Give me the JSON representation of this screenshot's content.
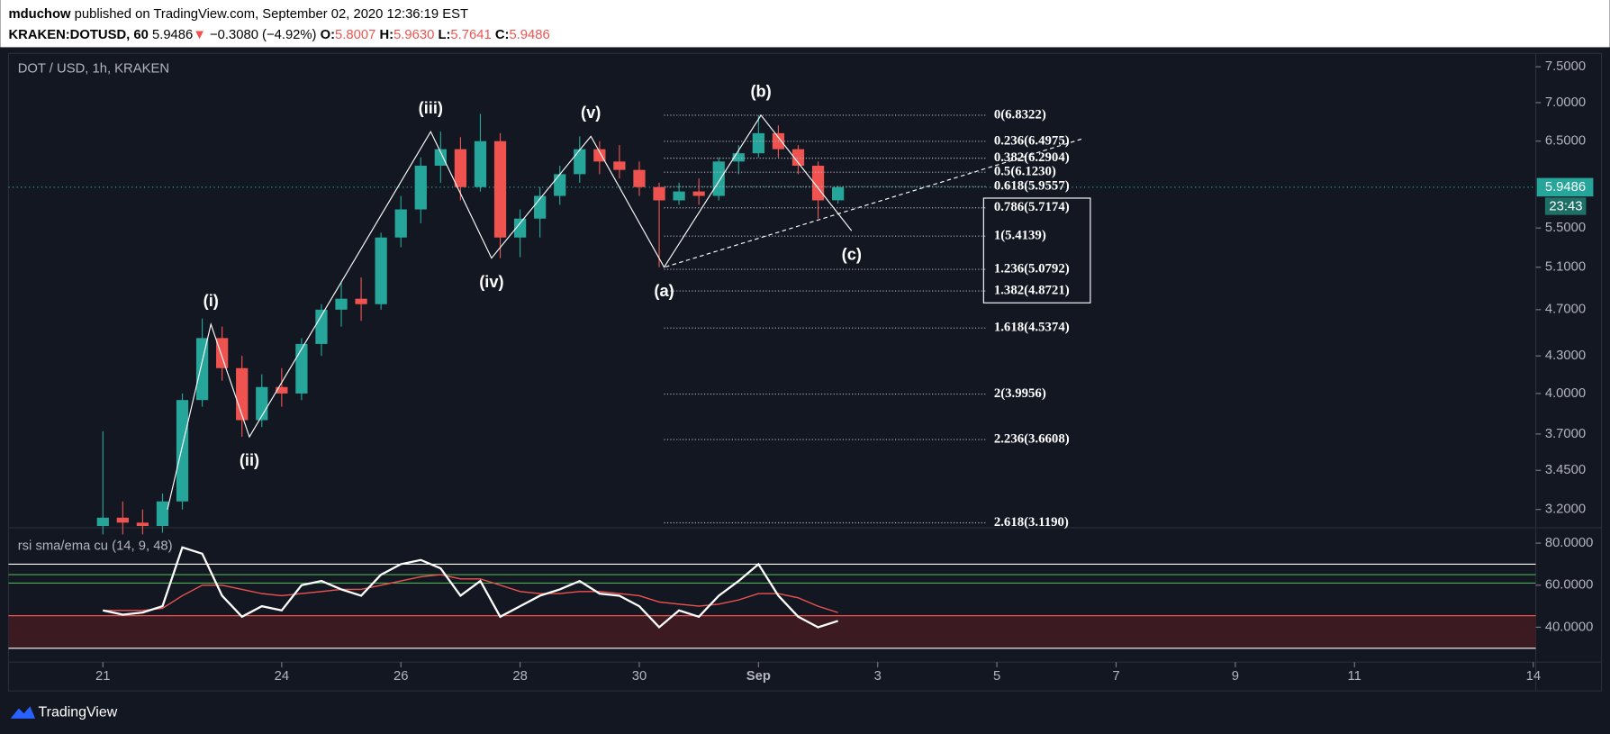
{
  "header": {
    "author": "mduchow",
    "published": "published on TradingView.com, September 02, 2020 12:36:19 EST",
    "symbol": "KRAKEN:DOTUSD, 60",
    "last": "5.9486",
    "arrow": "▼",
    "change": "−0.3080 (−4.92%)",
    "o_label": "O:",
    "o": "5.8007",
    "h_label": "H:",
    "h": "5.9630",
    "l_label": "L:",
    "l": "5.7641",
    "c_label": "C:",
    "c": "5.9486"
  },
  "footer": {
    "brand": "TradingView"
  },
  "chart_data": [
    {
      "type": "candlestick",
      "title": "DOT / USD, 1h, KRAKEN",
      "log_scale": true,
      "up_color": "#26a69a",
      "down_color": "#ef5350",
      "x": [
        "2020-08-21T00:00",
        "2020-08-21T08:00",
        "2020-08-21T16:00",
        "2020-08-22T00:00",
        "2020-08-22T08:00",
        "2020-08-22T16:00",
        "2020-08-23T00:00",
        "2020-08-23T08:00",
        "2020-08-23T16:00",
        "2020-08-24T00:00",
        "2020-08-24T08:00",
        "2020-08-24T16:00",
        "2020-08-25T00:00",
        "2020-08-25T08:00",
        "2020-08-25T16:00",
        "2020-08-26T00:00",
        "2020-08-26T08:00",
        "2020-08-26T16:00",
        "2020-08-27T00:00",
        "2020-08-27T08:00",
        "2020-08-27T16:00",
        "2020-08-28T00:00",
        "2020-08-28T08:00",
        "2020-08-28T16:00",
        "2020-08-29T00:00",
        "2020-08-29T08:00",
        "2020-08-29T16:00",
        "2020-08-30T00:00",
        "2020-08-30T08:00",
        "2020-08-30T16:00",
        "2020-08-31T00:00",
        "2020-08-31T08:00",
        "2020-08-31T16:00",
        "2020-09-01T00:00",
        "2020-09-01T08:00",
        "2020-09-01T16:00",
        "2020-09-02T00:00",
        "2020-09-02T08:00"
      ],
      "open": [
        3.1,
        3.15,
        3.12,
        3.1,
        3.25,
        3.95,
        4.45,
        4.2,
        3.8,
        4.05,
        4.0,
        4.4,
        4.7,
        4.8,
        4.75,
        5.4,
        5.7,
        6.2,
        6.4,
        5.95,
        6.5,
        5.4,
        5.6,
        5.85,
        6.1,
        6.4,
        6.25,
        6.15,
        5.95,
        5.8,
        5.9,
        5.85,
        6.25,
        6.35,
        6.6,
        6.4,
        6.2,
        5.8007
      ],
      "high": [
        3.72,
        3.25,
        3.2,
        3.3,
        4.0,
        4.62,
        4.55,
        4.3,
        4.15,
        4.2,
        4.45,
        4.75,
        4.95,
        5.0,
        5.45,
        5.85,
        6.3,
        6.62,
        6.55,
        6.85,
        6.6,
        5.7,
        5.95,
        6.2,
        6.56,
        6.5,
        6.45,
        6.25,
        6.0,
        6.0,
        6.05,
        6.3,
        6.45,
        6.8322,
        6.7,
        6.45,
        6.25,
        5.963
      ],
      "low": [
        3.05,
        3.05,
        3.05,
        3.06,
        3.2,
        3.9,
        4.1,
        3.68,
        3.75,
        3.9,
        3.95,
        4.3,
        4.55,
        4.6,
        4.7,
        5.3,
        5.55,
        6.0,
        5.8,
        5.9,
        5.19,
        5.2,
        5.4,
        5.75,
        6.0,
        6.1,
        6.05,
        5.85,
        5.1,
        5.75,
        5.75,
        5.8,
        6.1,
        6.3,
        6.3,
        6.1,
        5.6,
        5.7641
      ],
      "close": [
        3.15,
        3.12,
        3.1,
        3.25,
        3.95,
        4.45,
        4.2,
        3.8,
        4.05,
        4.0,
        4.4,
        4.7,
        4.8,
        4.75,
        5.4,
        5.7,
        6.2,
        6.4,
        5.95,
        6.5,
        5.4,
        5.6,
        5.85,
        6.1,
        6.4,
        6.25,
        6.15,
        5.95,
        5.8,
        5.9,
        5.85,
        6.25,
        6.35,
        6.6,
        6.4,
        6.2,
        5.8,
        5.9486
      ],
      "xlim": [
        "2020-08-19T10:00",
        "2020-09-14T01:00"
      ],
      "xticks": [
        {
          "value": "2020-08-21T00:00",
          "label": "21"
        },
        {
          "value": "2020-08-24T00:00",
          "label": "24"
        },
        {
          "value": "2020-08-26T00:00",
          "label": "26"
        },
        {
          "value": "2020-08-28T00:00",
          "label": "28"
        },
        {
          "value": "2020-08-30T00:00",
          "label": "30"
        },
        {
          "value": "2020-09-01T00:00",
          "label": "Sep"
        },
        {
          "value": "2020-09-03T00:00",
          "label": "3"
        },
        {
          "value": "2020-09-05T00:00",
          "label": "5"
        },
        {
          "value": "2020-09-07T00:00",
          "label": "7"
        },
        {
          "value": "2020-09-09T00:00",
          "label": "9"
        },
        {
          "value": "2020-09-11T00:00",
          "label": "11"
        },
        {
          "value": "2020-09-14T00:00",
          "label": "14"
        }
      ],
      "ylim": [
        3.09,
        7.65
      ],
      "yticks": [
        {
          "value": 7.5,
          "label": "7.5000"
        },
        {
          "value": 7.0,
          "label": "7.0000"
        },
        {
          "value": 6.5,
          "label": "6.5000"
        },
        {
          "value": 5.5,
          "label": "5.5000"
        },
        {
          "value": 5.1,
          "label": "5.1000"
        },
        {
          "value": 4.7,
          "label": "4.7000"
        },
        {
          "value": 4.3,
          "label": "4.3000"
        },
        {
          "value": 4.0,
          "label": "4.0000"
        },
        {
          "value": 3.7,
          "label": "3.7000"
        },
        {
          "value": 3.45,
          "label": "3.4500"
        },
        {
          "value": 3.2,
          "label": "3.2000"
        }
      ],
      "last_price": {
        "value": 5.9486,
        "label": "5.9486"
      },
      "countdown": "23:43",
      "waves": [
        {
          "label": null,
          "x": "2020-08-22T02:00",
          "y": 3.2,
          "side": "below"
        },
        {
          "label": "(i)",
          "x": "2020-08-22T19:30",
          "y": 4.57,
          "side": "above"
        },
        {
          "label": "(ii)",
          "x": "2020-08-23T11:00",
          "y": 3.68,
          "side": "below"
        },
        {
          "label": "(iii)",
          "x": "2020-08-26T12:00",
          "y": 6.62,
          "side": "above"
        },
        {
          "label": "(iv)",
          "x": "2020-08-27T12:30",
          "y": 5.19,
          "side": "below"
        },
        {
          "label": "(v)",
          "x": "2020-08-29T04:30",
          "y": 6.56,
          "side": "above"
        },
        {
          "label": "(a)",
          "x": "2020-08-30T10:00",
          "y": 5.1,
          "side": "below"
        },
        {
          "label": "(b)",
          "x": "2020-09-01T01:00",
          "y": 6.8322,
          "side": "above"
        },
        {
          "label": "(c)",
          "x": "2020-09-02T13:30",
          "y": 5.47,
          "side": "below"
        }
      ],
      "fib": {
        "x_range": [
          "2020-08-30T10:00",
          "2020-09-04T19:30"
        ],
        "levels": [
          {
            "value": 6.8322,
            "label": "0(6.8322)"
          },
          {
            "value": 6.4975,
            "label": "0.236(6.4975)"
          },
          {
            "value": 6.2904,
            "label": "0.382(6.2904)"
          },
          {
            "value": 6.123,
            "label": "0.5(6.1230)"
          },
          {
            "value": 5.9557,
            "label": "0.618(5.9557)"
          },
          {
            "value": 5.7174,
            "label": "0.786(5.7174)"
          },
          {
            "value": 5.4139,
            "label": "1(5.4139)"
          },
          {
            "value": 5.0792,
            "label": "1.236(5.0792)"
          },
          {
            "value": 4.8721,
            "label": "1.382(4.8721)"
          },
          {
            "value": 4.5374,
            "label": "1.618(4.5374)"
          },
          {
            "value": 3.9956,
            "label": "2(3.9956)"
          },
          {
            "value": 3.6608,
            "label": "2.236(3.6608)"
          },
          {
            "value": 3.119,
            "label": "2.618(3.1190)"
          }
        ]
      }
    },
    {
      "type": "line",
      "title": "rsi sma/ema cu (14, 9, 48)",
      "x": [
        "2020-08-21T00:00",
        "2020-08-21T08:00",
        "2020-08-21T16:00",
        "2020-08-22T00:00",
        "2020-08-22T08:00",
        "2020-08-22T16:00",
        "2020-08-23T00:00",
        "2020-08-23T08:00",
        "2020-08-23T16:00",
        "2020-08-24T00:00",
        "2020-08-24T08:00",
        "2020-08-24T16:00",
        "2020-08-25T00:00",
        "2020-08-25T08:00",
        "2020-08-25T16:00",
        "2020-08-26T00:00",
        "2020-08-26T08:00",
        "2020-08-26T16:00",
        "2020-08-27T00:00",
        "2020-08-27T08:00",
        "2020-08-27T16:00",
        "2020-08-28T00:00",
        "2020-08-28T08:00",
        "2020-08-28T16:00",
        "2020-08-29T00:00",
        "2020-08-29T08:00",
        "2020-08-29T16:00",
        "2020-08-30T00:00",
        "2020-08-30T08:00",
        "2020-08-30T16:00",
        "2020-08-31T00:00",
        "2020-08-31T08:00",
        "2020-08-31T16:00",
        "2020-09-01T00:00",
        "2020-09-01T08:00",
        "2020-09-01T16:00",
        "2020-09-02T00:00",
        "2020-09-02T08:00"
      ],
      "series": [
        {
          "color": "#ffffff",
          "values": [
            48,
            46,
            47,
            50,
            78,
            75,
            55,
            45,
            50,
            48,
            60,
            62,
            58,
            55,
            65,
            70,
            72,
            68,
            55,
            62,
            45,
            50,
            55,
            58,
            62,
            56,
            55,
            50,
            40,
            48,
            45,
            55,
            62,
            70,
            55,
            45,
            40,
            43
          ]
        },
        {
          "color": "#ef5350",
          "values": [
            48,
            48,
            48,
            49,
            55,
            60,
            60,
            58,
            56,
            55,
            56,
            57,
            58,
            58,
            60,
            62,
            64,
            65,
            63,
            63,
            60,
            57,
            56,
            56,
            57,
            57,
            56,
            55,
            52,
            51,
            50,
            51,
            53,
            56,
            56,
            54,
            50,
            47
          ]
        }
      ],
      "ylim": [
        23.4,
        85.9
      ],
      "yticks": [
        {
          "value": 80,
          "label": "80.0000"
        },
        {
          "value": 60,
          "label": "60.0000"
        },
        {
          "value": 40,
          "label": "40.0000"
        }
      ],
      "levels": [
        {
          "value": 70,
          "color": "#ffffff"
        },
        {
          "value": 65,
          "color": "#4caf50"
        },
        {
          "value": 61,
          "color": "#4caf50"
        }
      ],
      "band": {
        "range": [
          30,
          45.5
        ],
        "fill": "#3b1a22",
        "edge_colors": [
          "#ffffff",
          "#ef5350"
        ]
      }
    }
  ]
}
